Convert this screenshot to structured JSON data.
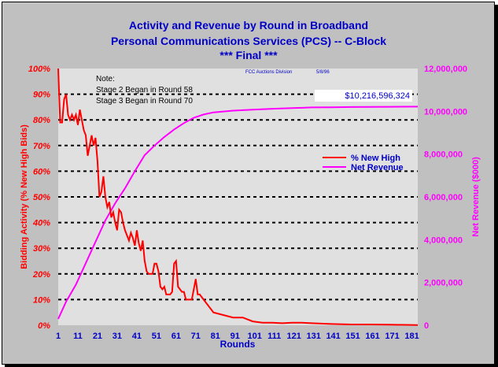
{
  "chart_data": {
    "type": "line",
    "title": "Activity and Revenue by Round in Broadband",
    "title_line2": "Personal Communications Services (PCS) -- C-Block",
    "title_line3": "*** Final ***",
    "xlabel": "Rounds",
    "ylabel_left": "Bidding Activity (% New High Bids)",
    "ylabel_right": "Net Revenue ($000)",
    "xlim": [
      1,
      184
    ],
    "xticks": [
      "1",
      "11",
      "21",
      "31",
      "41",
      "51",
      "61",
      "71",
      "81",
      "91",
      "101",
      "111",
      "121",
      "131",
      "141",
      "151",
      "161",
      "171",
      "181"
    ],
    "ylim_left": [
      0,
      100
    ],
    "yticks_left": [
      "0%",
      "10%",
      "20%",
      "30%",
      "40%",
      "50%",
      "60%",
      "70%",
      "80%",
      "90%",
      "100%"
    ],
    "ylim_right": [
      0,
      12000000
    ],
    "yticks_right": [
      "0",
      "2,000,000",
      "4,000,000",
      "6,000,000",
      "8,000,000",
      "10,000,000",
      "12,000,000"
    ],
    "grid": "horizontal dashed",
    "legend_position": "right-middle",
    "colors": {
      "new_high": "#ff0000",
      "net_revenue": "#ff00ff",
      "plot_bg": "#e0e0e0",
      "text": "#0000c8"
    },
    "series": [
      {
        "name": "% New High",
        "axis": "left",
        "x": [
          1,
          2,
          3,
          4,
          5,
          6,
          7,
          8,
          9,
          10,
          11,
          12,
          13,
          14,
          15,
          16,
          17,
          18,
          19,
          20,
          21,
          22,
          23,
          24,
          25,
          26,
          27,
          28,
          29,
          30,
          31,
          32,
          33,
          34,
          35,
          36,
          37,
          38,
          39,
          40,
          41,
          42,
          43,
          44,
          45,
          46,
          47,
          48,
          49,
          50,
          51,
          52,
          53,
          54,
          55,
          56,
          57,
          58,
          59,
          60,
          61,
          62,
          63,
          64,
          65,
          66,
          67,
          68,
          69,
          70,
          71,
          72,
          73,
          74,
          75,
          76,
          77,
          78,
          79,
          80,
          85,
          90,
          95,
          100,
          105,
          110,
          115,
          120,
          125,
          130,
          140,
          150,
          160,
          170,
          184
        ],
        "values": [
          100,
          79,
          79,
          88,
          90,
          82,
          80,
          82,
          80,
          82,
          78,
          84,
          80,
          76,
          74,
          66,
          70,
          74,
          70,
          73,
          64,
          50,
          52,
          58,
          50,
          46,
          48,
          42,
          44,
          40,
          37,
          45,
          44,
          40,
          37,
          35,
          33,
          36,
          34,
          31,
          37,
          32,
          29,
          33,
          25,
          21,
          20,
          20,
          20,
          24,
          24,
          21,
          15,
          14,
          15,
          12,
          12,
          12,
          13,
          24,
          25,
          15,
          14,
          13,
          13,
          10,
          10,
          10,
          10,
          14,
          18,
          12,
          12,
          11,
          10,
          9,
          8,
          7,
          6,
          5,
          4,
          3,
          3,
          1.5,
          1,
          1,
          0.8,
          1,
          1,
          0.8,
          0.5,
          0.3,
          0.3,
          0.2,
          0.1
        ]
      },
      {
        "name": "Net Revenue",
        "axis": "right",
        "x": [
          1,
          5,
          10,
          15,
          20,
          25,
          30,
          35,
          40,
          45,
          50,
          55,
          60,
          65,
          70,
          75,
          80,
          90,
          100,
          110,
          120,
          130,
          140,
          150,
          160,
          170,
          184
        ],
        "values": [
          300000,
          1100000,
          1900000,
          2900000,
          3900000,
          4900000,
          5700000,
          6400000,
          7200000,
          7950000,
          8400000,
          8800000,
          9150000,
          9450000,
          9700000,
          9850000,
          9950000,
          10030000,
          10080000,
          10120000,
          10150000,
          10180000,
          10190000,
          10200000,
          10205000,
          10210000,
          10216596
        ]
      }
    ],
    "annotations": {
      "note_title": "Note:",
      "note_line1": "Stage 2 Began in Round 58",
      "note_line2": "Stage 3 Began in Round 70",
      "source": "FCC Auctions Division",
      "date": "5/8/96",
      "final_revenue": "$10,216,596,324"
    }
  }
}
